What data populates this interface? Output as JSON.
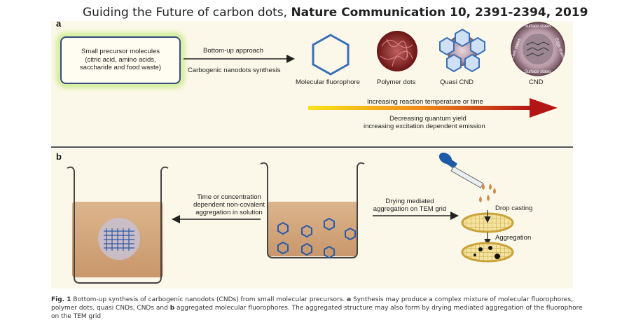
{
  "header": {
    "title_plain": "Guiding the Future of carbon dots,",
    "title_bold": "Nature Communication 10, 2391-2394, 2019"
  },
  "panel_a": {
    "label": "a",
    "precursor_lines": [
      "Small precursor molecules",
      "(citric acid, amino acids,",
      "saccharide and food waste)"
    ],
    "arrow_top": "Bottom-up approach",
    "arrow_bottom": "Carbogenic nanodots synthesis",
    "products": [
      "Molecular fluorophore",
      "Polymer dots",
      "Quasi CND",
      "CND"
    ],
    "cnd_ring": [
      "Surface states",
      "Edge states",
      "Surface states",
      "Core states"
    ],
    "gradient_top": "Increasing reaction temperature or time",
    "gradient_bottom_1": "Decreasing quantum yield",
    "gradient_bottom_2": "increasing excitation dependent emission",
    "colors": {
      "gradient_start": "#f7e31a",
      "gradient_mid": "#f28c1a",
      "gradient_end": "#b31515"
    }
  },
  "panel_b": {
    "label": "b",
    "left_arrow_lines": [
      "Time or concentration",
      "dependent non-covalent",
      "aggregation in solution"
    ],
    "right_arrow_lines": [
      "Drying mediated",
      "aggregation on TEM grid"
    ],
    "drop_casting": "Drop casting",
    "aggregation": "Aggregation"
  },
  "caption": {
    "fig": "Fig. 1",
    "t1": " Bottom-up synthesis of carbogenic nanodots (CNDs) from small molecular precursors. ",
    "a": "a",
    "t2": " Synthesis may produce a complex mixture of molecular fluorophores, polymer dots, quasi CNDs, CNDs and ",
    "b": "b",
    "t3": " aggregated molecular fluorophores. The aggregated structure may also form by drying mediated aggregation of the fluorophore on the TEM grid"
  }
}
